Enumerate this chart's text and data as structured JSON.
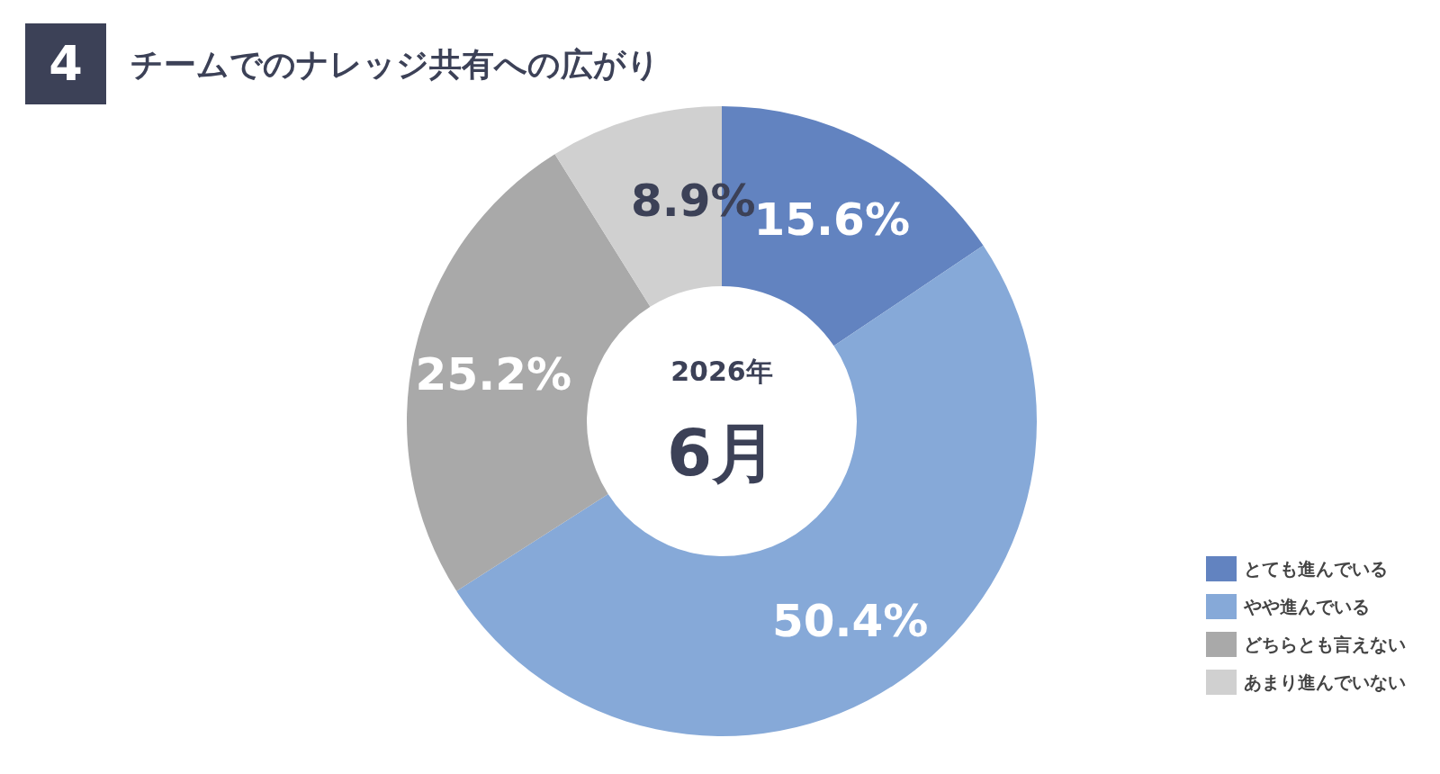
{
  "chart_data": {
    "type": "donut",
    "title": "チームでのナレッジ共有への広がり",
    "categories": [
      "とても進んでいる",
      "やや進んでいる",
      "どちらとも言えない",
      "あまり進んでいない"
    ],
    "values": [
      15.6,
      50.4,
      25.2,
      8.9
    ],
    "colors": [
      "#6283c0",
      "#86a9d8",
      "#a9a9a9",
      "#d0d0d0"
    ],
    "value_labels": [
      "15.6%",
      "50.4%",
      "25.2%",
      "8.9%"
    ],
    "legend": "bottom right",
    "annotations": [
      "4",
      "2026年",
      "6月"
    ]
  }
}
